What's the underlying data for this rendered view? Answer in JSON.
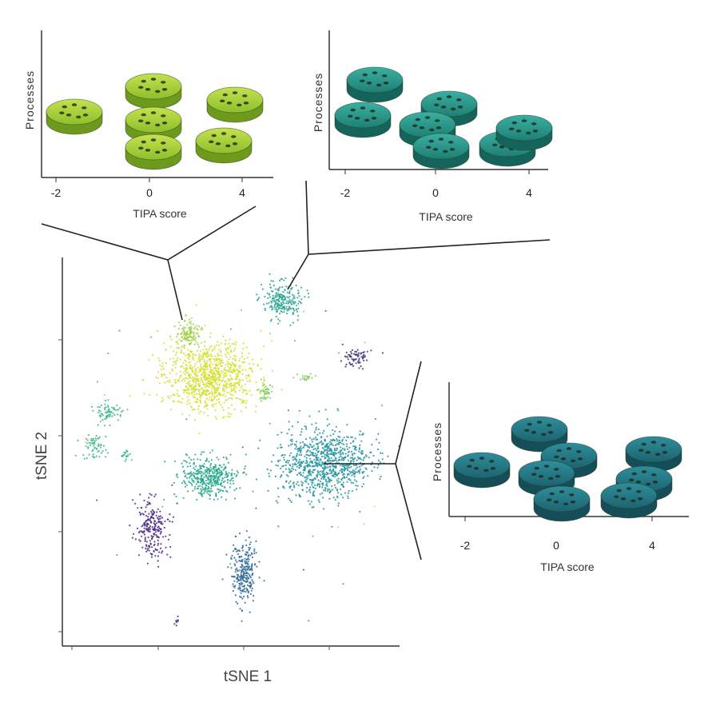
{
  "tsne": {
    "xlabel": "tSNE 1",
    "ylabel": "tSNE 2"
  },
  "panels": [
    {
      "id": "panel-a",
      "color": "#a4cd3c",
      "ylabel": "Processes",
      "xlabel": "TIPA score",
      "ticks": [
        "-2",
        "0",
        "4"
      ]
    },
    {
      "id": "panel-b",
      "color": "#2b9a8d",
      "ylabel": "Processes",
      "xlabel": "TIPA score",
      "ticks": [
        "-2",
        "0",
        "4"
      ]
    },
    {
      "id": "panel-c",
      "color": "#2a7f8c",
      "ylabel": "Processes",
      "xlabel": "TIPA score",
      "ticks": [
        "-2",
        "0",
        "4"
      ]
    }
  ],
  "clusters": [
    {
      "name": "yellow-main",
      "color": "#d4df2a"
    },
    {
      "name": "lime-top",
      "color": "#9fd04a"
    },
    {
      "name": "lime-small",
      "color": "#7ccf5a"
    },
    {
      "name": "teal-top",
      "color": "#2aa592"
    },
    {
      "name": "green-left",
      "color": "#3db889"
    },
    {
      "name": "teal-center",
      "color": "#22a68a"
    },
    {
      "name": "teal-large",
      "color": "#2493a0"
    },
    {
      "name": "blue-bottom",
      "color": "#2f6a98"
    },
    {
      "name": "purple-left",
      "color": "#4a2d82"
    },
    {
      "name": "purple-right",
      "color": "#43307e"
    }
  ]
}
